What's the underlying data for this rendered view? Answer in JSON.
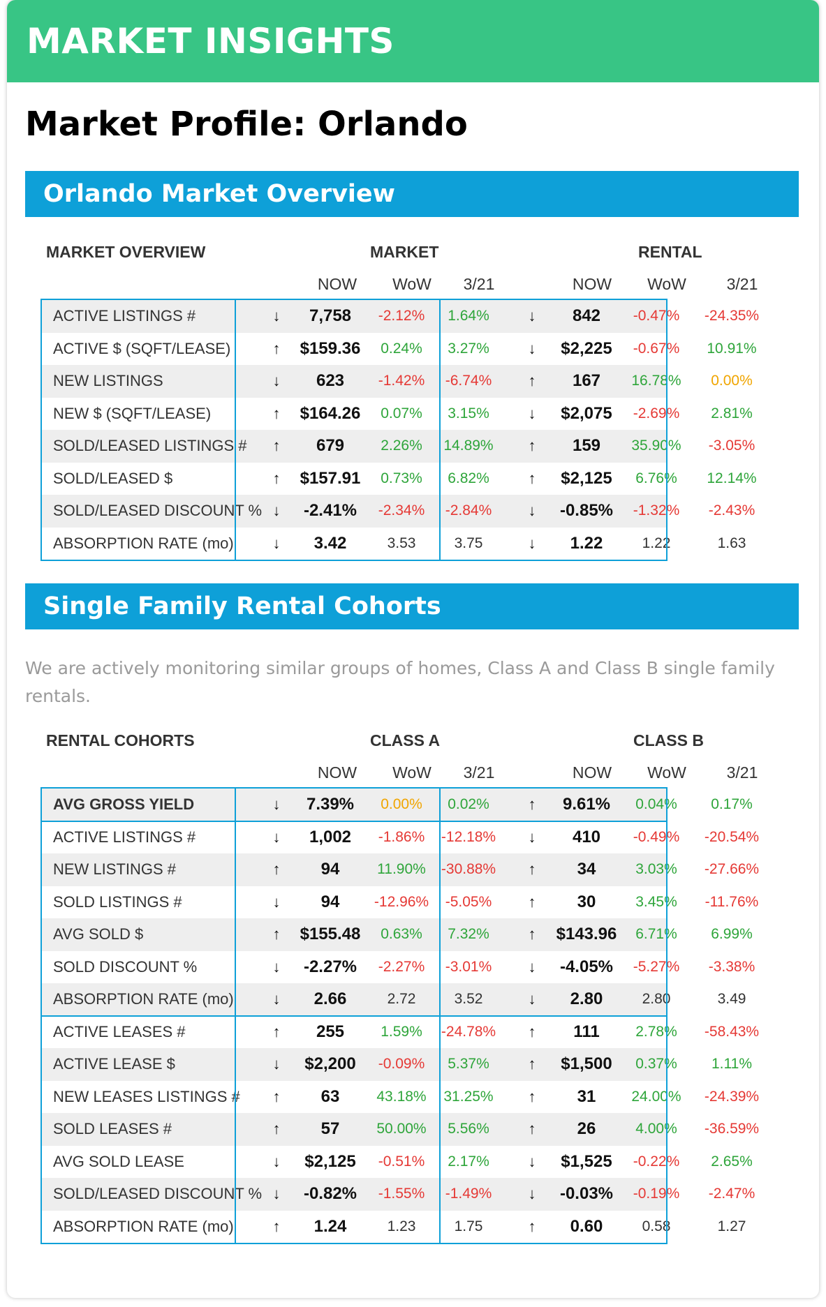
{
  "banner_title": "MARKET INSIGHTS",
  "profile_title": "Market Profile: Orlando",
  "overview_section_title": "Orlando Market Overview",
  "cohorts_section_title": "Single Family Rental Cohorts",
  "cohorts_description": "We are actively monitoring similar groups of homes, Class A and Class B single family rentals.",
  "colors": {
    "banner": "#38c585",
    "section": "#0ea0d8",
    "up": "#2ea53a",
    "down": "#e53935",
    "flat": "#f0a500"
  },
  "overview": {
    "title": "MARKET OVERVIEW",
    "group_a": "MARKET",
    "group_b": "RENTAL",
    "sub_now": "NOW",
    "sub_wow": "WoW",
    "sub_date": "3/21",
    "rows": [
      {
        "label": "ACTIVE LISTINGS #",
        "a_arrow": "↓",
        "a_now": "7,758",
        "a_wow": "-2.12%",
        "a_wow_c": "red",
        "a_d": "1.64%",
        "a_d_c": "green",
        "b_arrow": "↓",
        "b_now": "842",
        "b_wow": "-0.47%",
        "b_wow_c": "red",
        "b_d": "-24.35%",
        "b_d_c": "red"
      },
      {
        "label": "ACTIVE $ (SQFT/LEASE)",
        "a_arrow": "↑",
        "a_now": "$159.36",
        "a_wow": "0.24%",
        "a_wow_c": "green",
        "a_d": "3.27%",
        "a_d_c": "green",
        "b_arrow": "↓",
        "b_now": "$2,225",
        "b_wow": "-0.67%",
        "b_wow_c": "red",
        "b_d": "10.91%",
        "b_d_c": "green"
      },
      {
        "label": "NEW LISTINGS",
        "a_arrow": "↓",
        "a_now": "623",
        "a_wow": "-1.42%",
        "a_wow_c": "red",
        "a_d": "-6.74%",
        "a_d_c": "red",
        "b_arrow": "↑",
        "b_now": "167",
        "b_wow": "16.78%",
        "b_wow_c": "green",
        "b_d": "0.00%",
        "b_d_c": "orange"
      },
      {
        "label": "NEW $ (SQFT/LEASE)",
        "a_arrow": "↑",
        "a_now": "$164.26",
        "a_wow": "0.07%",
        "a_wow_c": "green",
        "a_d": "3.15%",
        "a_d_c": "green",
        "b_arrow": "↓",
        "b_now": "$2,075",
        "b_wow": "-2.69%",
        "b_wow_c": "red",
        "b_d": "2.81%",
        "b_d_c": "green"
      },
      {
        "label": "SOLD/LEASED LISTINGS #",
        "a_arrow": "↑",
        "a_now": "679",
        "a_wow": "2.26%",
        "a_wow_c": "green",
        "a_d": "14.89%",
        "a_d_c": "green",
        "b_arrow": "↑",
        "b_now": "159",
        "b_wow": "35.90%",
        "b_wow_c": "green",
        "b_d": "-3.05%",
        "b_d_c": "red"
      },
      {
        "label": "SOLD/LEASED $",
        "a_arrow": "↑",
        "a_now": "$157.91",
        "a_wow": "0.73%",
        "a_wow_c": "green",
        "a_d": "6.82%",
        "a_d_c": "green",
        "b_arrow": "↑",
        "b_now": "$2,125",
        "b_wow": "6.76%",
        "b_wow_c": "green",
        "b_d": "12.14%",
        "b_d_c": "green"
      },
      {
        "label": "SOLD/LEASED DISCOUNT %",
        "a_arrow": "↓",
        "a_now": "-2.41%",
        "a_wow": "-2.34%",
        "a_wow_c": "red",
        "a_d": "-2.84%",
        "a_d_c": "red",
        "b_arrow": "↓",
        "b_now": "-0.85%",
        "b_wow": "-1.32%",
        "b_wow_c": "red",
        "b_d": "-2.43%",
        "b_d_c": "red"
      },
      {
        "label": "ABSORPTION RATE (mo)",
        "a_arrow": "↓",
        "a_now": "3.42",
        "a_wow": "3.53",
        "a_wow_c": "plain",
        "a_d": "3.75",
        "a_d_c": "plain",
        "b_arrow": "↓",
        "b_now": "1.22",
        "b_wow": "1.22",
        "b_wow_c": "plain",
        "b_d": "1.63",
        "b_d_c": "plain"
      }
    ]
  },
  "cohorts": {
    "title": "RENTAL COHORTS",
    "group_a": "CLASS A",
    "group_b": "CLASS B",
    "sub_now": "NOW",
    "sub_wow": "WoW",
    "sub_date": "3/21",
    "rows": [
      {
        "label": "AVG GROSS YIELD",
        "bold": true,
        "a_arrow": "↓",
        "a_now": "7.39%",
        "a_wow": "0.00%",
        "a_wow_c": "orange",
        "a_d": "0.02%",
        "a_d_c": "green",
        "b_arrow": "↑",
        "b_now": "9.61%",
        "b_wow": "0.04%",
        "b_wow_c": "green",
        "b_d": "0.17%",
        "b_d_c": "green"
      },
      {
        "label": "ACTIVE LISTINGS #",
        "a_arrow": "↓",
        "a_now": "1,002",
        "a_wow": "-1.86%",
        "a_wow_c": "red",
        "a_d": "-12.18%",
        "a_d_c": "red",
        "b_arrow": "↓",
        "b_now": "410",
        "b_wow": "-0.49%",
        "b_wow_c": "red",
        "b_d": "-20.54%",
        "b_d_c": "red"
      },
      {
        "label": "NEW LISTINGS #",
        "a_arrow": "↑",
        "a_now": "94",
        "a_wow": "11.90%",
        "a_wow_c": "green",
        "a_d": "-30.88%",
        "a_d_c": "red",
        "b_arrow": "↑",
        "b_now": "34",
        "b_wow": "3.03%",
        "b_wow_c": "green",
        "b_d": "-27.66%",
        "b_d_c": "red"
      },
      {
        "label": "SOLD LISTINGS #",
        "a_arrow": "↓",
        "a_now": "94",
        "a_wow": "-12.96%",
        "a_wow_c": "red",
        "a_d": "-5.05%",
        "a_d_c": "red",
        "b_arrow": "↑",
        "b_now": "30",
        "b_wow": "3.45%",
        "b_wow_c": "green",
        "b_d": "-11.76%",
        "b_d_c": "red"
      },
      {
        "label": "AVG SOLD $",
        "a_arrow": "↑",
        "a_now": "$155.48",
        "a_wow": "0.63%",
        "a_wow_c": "green",
        "a_d": "7.32%",
        "a_d_c": "green",
        "b_arrow": "↑",
        "b_now": "$143.96",
        "b_wow": "6.71%",
        "b_wow_c": "green",
        "b_d": "6.99%",
        "b_d_c": "green"
      },
      {
        "label": "SOLD DISCOUNT %",
        "a_arrow": "↓",
        "a_now": "-2.27%",
        "a_wow": "-2.27%",
        "a_wow_c": "red",
        "a_d": "-3.01%",
        "a_d_c": "red",
        "b_arrow": "↓",
        "b_now": "-4.05%",
        "b_wow": "-5.27%",
        "b_wow_c": "red",
        "b_d": "-3.38%",
        "b_d_c": "red"
      },
      {
        "label": "ABSORPTION RATE (mo)",
        "a_arrow": "↓",
        "a_now": "2.66",
        "a_wow": "2.72",
        "a_wow_c": "plain",
        "a_d": "3.52",
        "a_d_c": "plain",
        "b_arrow": "↓",
        "b_now": "2.80",
        "b_wow": "2.80",
        "b_wow_c": "plain",
        "b_d": "3.49",
        "b_d_c": "plain"
      },
      {
        "label": "ACTIVE LEASES #",
        "a_arrow": "↑",
        "a_now": "255",
        "a_wow": "1.59%",
        "a_wow_c": "green",
        "a_d": "-24.78%",
        "a_d_c": "red",
        "b_arrow": "↑",
        "b_now": "111",
        "b_wow": "2.78%",
        "b_wow_c": "green",
        "b_d": "-58.43%",
        "b_d_c": "red"
      },
      {
        "label": "ACTIVE LEASE $",
        "a_arrow": "↓",
        "a_now": "$2,200",
        "a_wow": "-0.09%",
        "a_wow_c": "red",
        "a_d": "5.37%",
        "a_d_c": "green",
        "b_arrow": "↑",
        "b_now": "$1,500",
        "b_wow": "0.37%",
        "b_wow_c": "green",
        "b_d": "1.11%",
        "b_d_c": "green"
      },
      {
        "label": "NEW LEASES LISTINGS #",
        "a_arrow": "↑",
        "a_now": "63",
        "a_wow": "43.18%",
        "a_wow_c": "green",
        "a_d": "31.25%",
        "a_d_c": "green",
        "b_arrow": "↑",
        "b_now": "31",
        "b_wow": "24.00%",
        "b_wow_c": "green",
        "b_d": "-24.39%",
        "b_d_c": "red"
      },
      {
        "label": "SOLD LEASES #",
        "a_arrow": "↑",
        "a_now": "57",
        "a_wow": "50.00%",
        "a_wow_c": "green",
        "a_d": "5.56%",
        "a_d_c": "green",
        "b_arrow": "↑",
        "b_now": "26",
        "b_wow": "4.00%",
        "b_wow_c": "green",
        "b_d": "-36.59%",
        "b_d_c": "red"
      },
      {
        "label": "AVG SOLD LEASE",
        "a_arrow": "↓",
        "a_now": "$2,125",
        "a_wow": "-0.51%",
        "a_wow_c": "red",
        "a_d": "2.17%",
        "a_d_c": "green",
        "b_arrow": "↓",
        "b_now": "$1,525",
        "b_wow": "-0.22%",
        "b_wow_c": "red",
        "b_d": "2.65%",
        "b_d_c": "green"
      },
      {
        "label": "SOLD/LEASED DISCOUNT %",
        "a_arrow": "↓",
        "a_now": "-0.82%",
        "a_wow": "-1.55%",
        "a_wow_c": "red",
        "a_d": "-1.49%",
        "a_d_c": "red",
        "b_arrow": "↓",
        "b_now": "-0.03%",
        "b_wow": "-0.19%",
        "b_wow_c": "red",
        "b_d": "-2.47%",
        "b_d_c": "red"
      },
      {
        "label": "ABSORPTION RATE (mo)",
        "a_arrow": "↑",
        "a_now": "1.24",
        "a_wow": "1.23",
        "a_wow_c": "plain",
        "a_d": "1.75",
        "a_d_c": "plain",
        "b_arrow": "↑",
        "b_now": "0.60",
        "b_wow": "0.58",
        "b_wow_c": "plain",
        "b_d": "1.27",
        "b_d_c": "plain"
      }
    ]
  }
}
